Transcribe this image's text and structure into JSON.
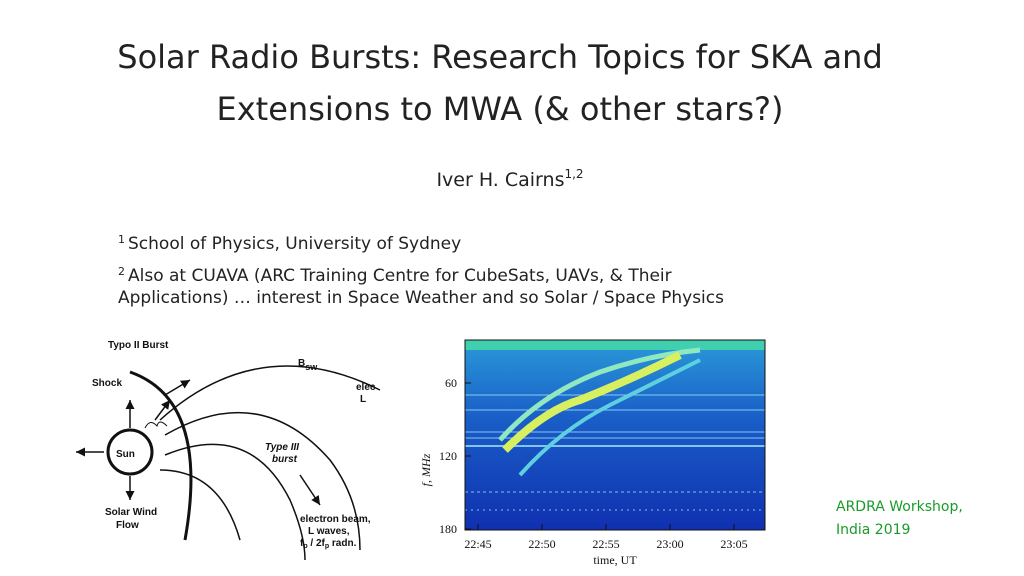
{
  "title_lines": [
    "Solar Radio Bursts: Research Topics for SKA and",
    "Extensions to MWA (& other stars?)"
  ],
  "author": {
    "name": "Iver H. Cairns",
    "sup": "1,2"
  },
  "affiliations": [
    {
      "mark": "1",
      "lines": [
        "School of Physics, University of Sydney"
      ]
    },
    {
      "mark": "2",
      "lines": [
        "Also at CUAVA (ARC Training Centre for CubeSats, UAVs, & Their",
        "Applications) … interest in Space Weather and so Solar / Space Physics"
      ]
    }
  ],
  "diagram": {
    "typo_ii": "Typo II Burst",
    "b": "B",
    "b_sub": "sw",
    "shock": "Shock",
    "elec": "elec",
    "l": "L",
    "sun": "Sun",
    "type_iii": [
      "Type III",
      "burst"
    ],
    "solar_wind": [
      "Solar Wind",
      "Flow"
    ],
    "beam": [
      "electron beam,",
      "L waves,"
    ],
    "fp": "f",
    "fp_sub": "p",
    "fp_mid": " / 2f",
    "fp_sub2": "p",
    "fp_end": " radn."
  },
  "spectrogram": {
    "y_label": "f, MHz",
    "x_label": "time, UT",
    "y_ticks": [
      "60",
      "120",
      "180"
    ],
    "x_ticks": [
      "22:45",
      "22:50",
      "22:55",
      "23:00",
      "23:05"
    ]
  },
  "footer": [
    "ARDRA Workshop,",
    "India 2019"
  ]
}
